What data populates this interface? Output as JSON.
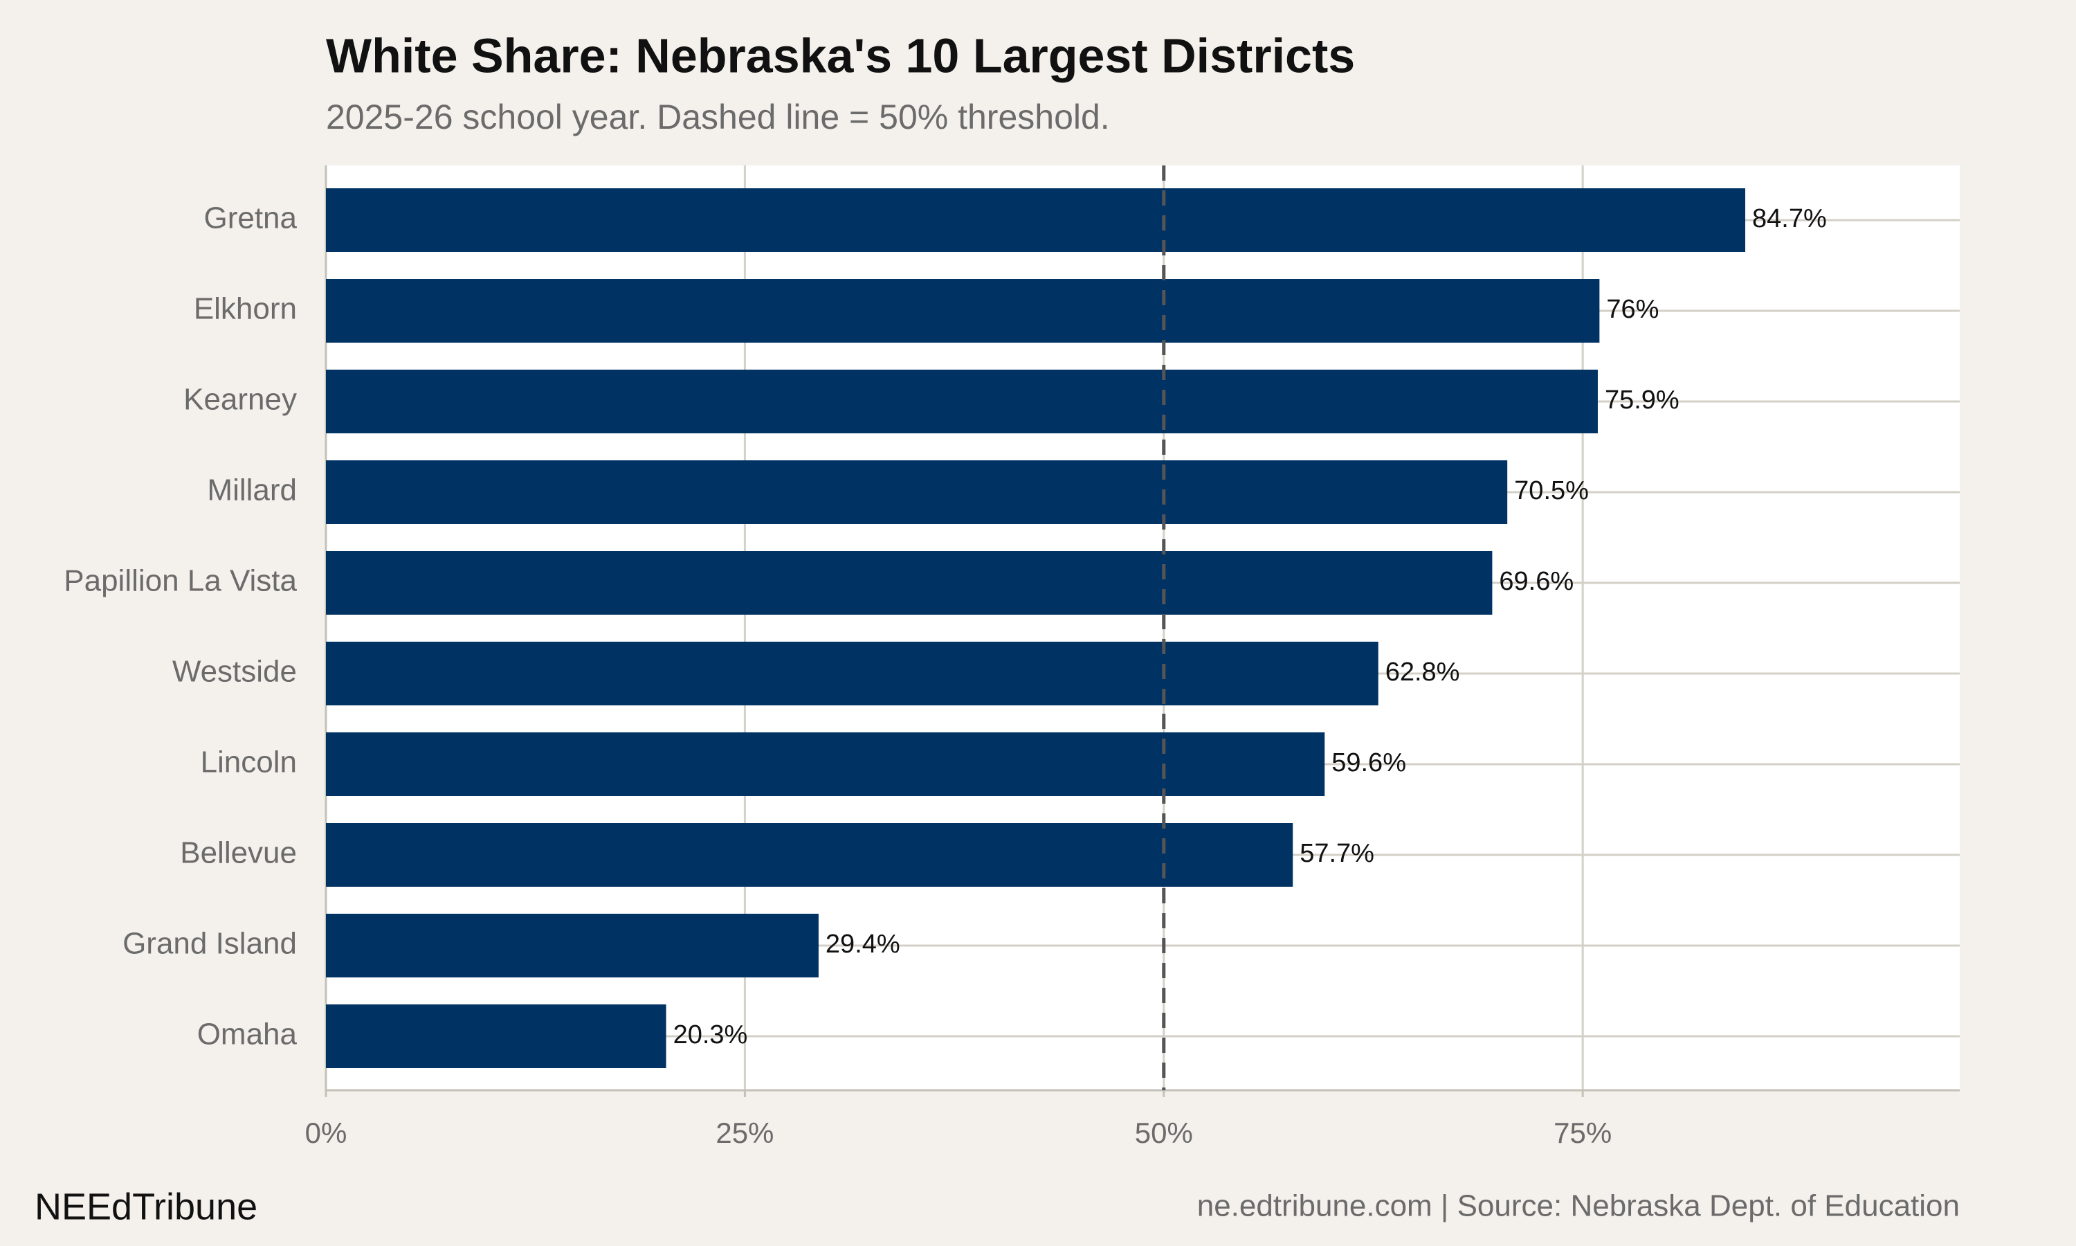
{
  "chart_data": {
    "type": "bar",
    "orientation": "horizontal",
    "title": "White Share: Nebraska's 10 Largest Districts",
    "subtitle": "2025-26 school year. Dashed line = 50% threshold.",
    "categories": [
      "Gretna",
      "Elkhorn",
      "Kearney",
      "Millard",
      "Papillion La Vista",
      "Westside",
      "Lincoln",
      "Bellevue",
      "Grand Island",
      "Omaha"
    ],
    "values": [
      84.7,
      76,
      75.9,
      70.5,
      69.6,
      62.8,
      59.6,
      57.7,
      29.4,
      20.3
    ],
    "value_labels": [
      "84.7%",
      "76%",
      "75.9%",
      "70.5%",
      "69.6%",
      "62.8%",
      "59.6%",
      "57.7%",
      "29.4%",
      "20.3%"
    ],
    "color": "#003263",
    "xlim": [
      0,
      97.5
    ],
    "xticks": [
      {
        "value": 0,
        "label": "0%"
      },
      {
        "value": 25,
        "label": "25%"
      },
      {
        "value": 50,
        "label": "50%"
      },
      {
        "value": 75,
        "label": "75%"
      }
    ],
    "reference_line": 50,
    "grid": true,
    "brand": "NEEdTribune",
    "source": "ne.edtribune.com | Source: Nebraska Dept. of Education"
  }
}
